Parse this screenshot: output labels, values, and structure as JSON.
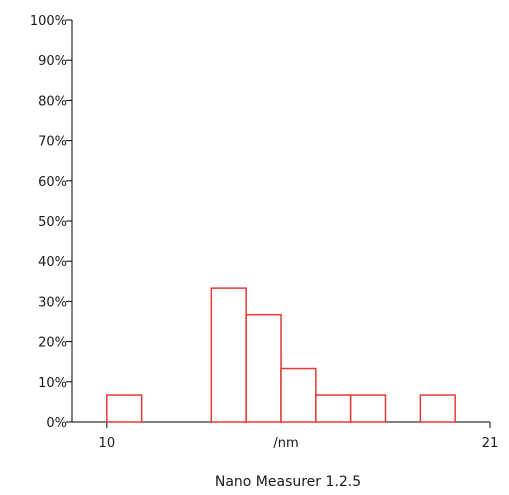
{
  "chart_data": {
    "type": "bar",
    "subtype": "histogram",
    "bin_width": 1,
    "bins": [
      {
        "start": 10,
        "end": 11,
        "percent": 6.7
      },
      {
        "start": 13,
        "end": 14,
        "percent": 33.3
      },
      {
        "start": 14,
        "end": 15,
        "percent": 26.7
      },
      {
        "start": 15,
        "end": 16,
        "percent": 13.3
      },
      {
        "start": 16,
        "end": 17,
        "percent": 6.7
      },
      {
        "start": 17,
        "end": 18,
        "percent": 6.7
      },
      {
        "start": 19,
        "end": 20,
        "percent": 6.7
      }
    ],
    "xlim": [
      9,
      21
    ],
    "ylim": [
      0,
      100
    ],
    "y_ticks": [
      "0%",
      "10%",
      "20%",
      "30%",
      "40%",
      "50%",
      "60%",
      "70%",
      "80%",
      "90%",
      "100%"
    ],
    "x_tick_labels": [
      {
        "value": 10,
        "label": "10"
      },
      {
        "value": 21,
        "label": "21"
      }
    ],
    "xlabel": "/nm",
    "ylabel": "",
    "caption": "Nano Measurer 1.2.5",
    "grid": false,
    "legend": "none",
    "bar_color": "#e53935",
    "axis_color": "#000000"
  }
}
